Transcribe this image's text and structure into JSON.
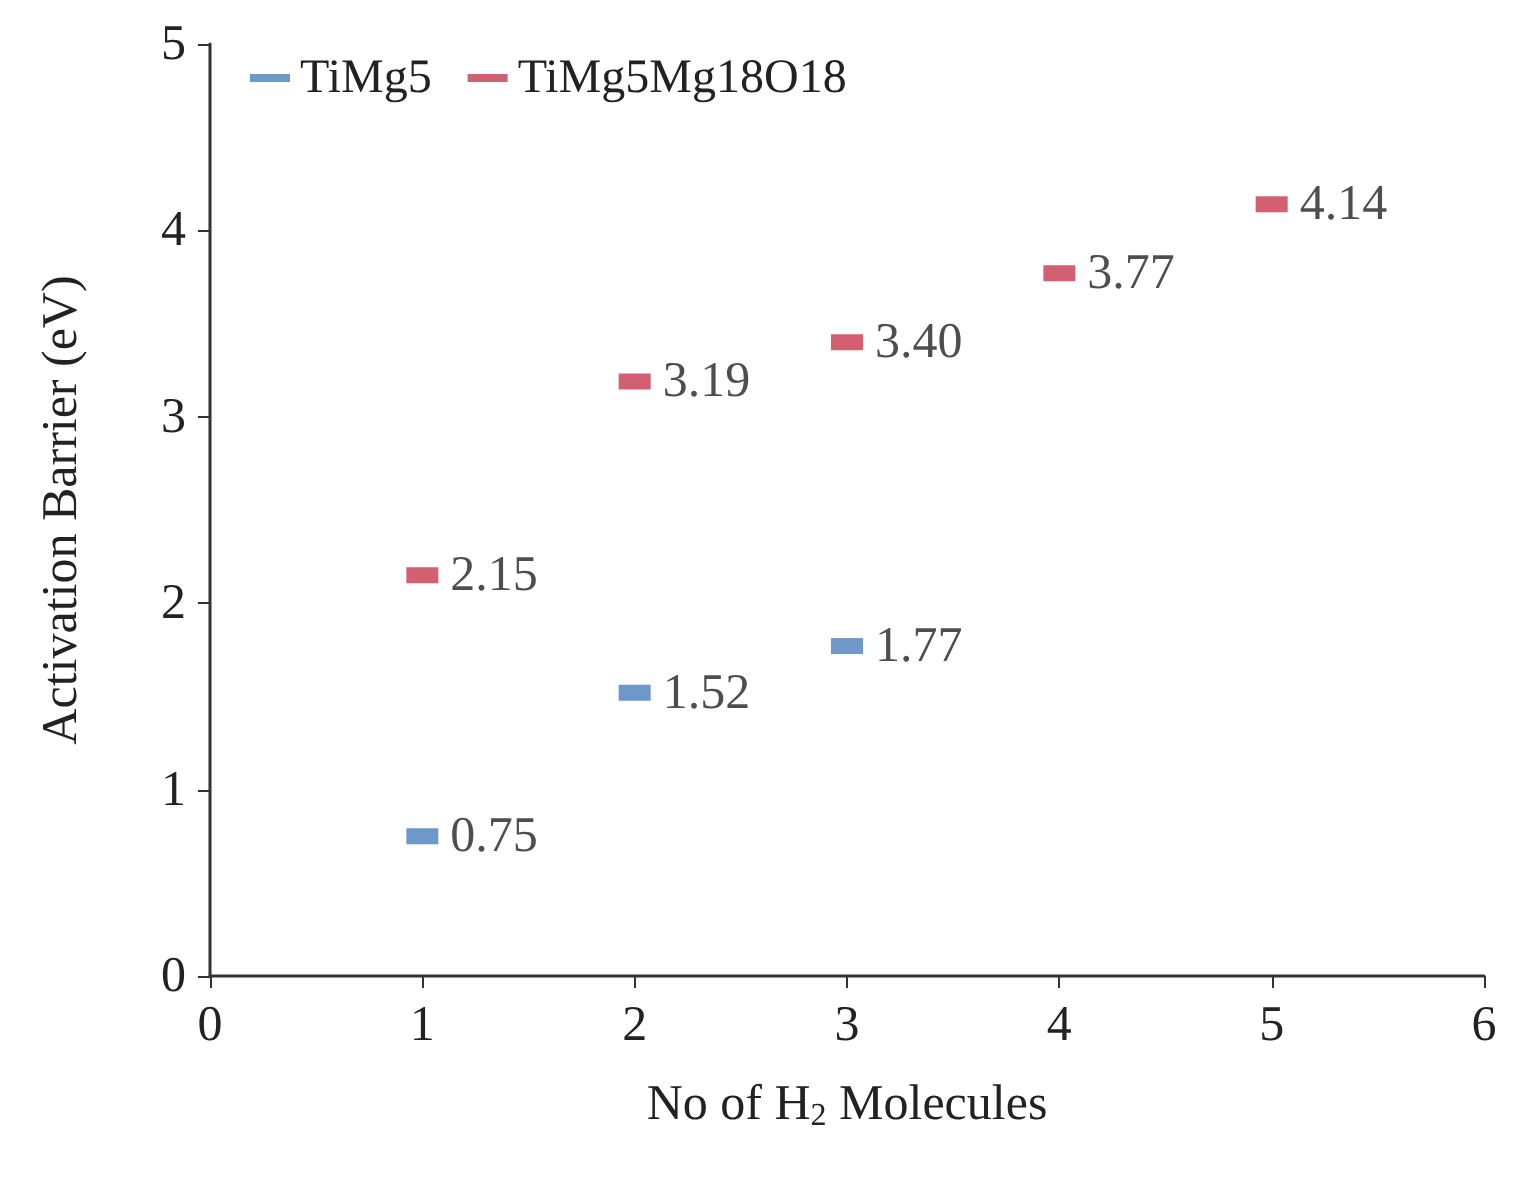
{
  "chart_data": {
    "type": "scatter",
    "xlabel": "No of H$_{2}$ Molecules",
    "ylabel": "Activation Barrier (eV)",
    "xlim": [
      0,
      6
    ],
    "xticks": [
      0,
      1,
      2,
      3,
      4,
      5,
      6
    ],
    "ylim": [
      0,
      5
    ],
    "yticks": [
      0,
      1,
      2,
      3,
      4,
      5
    ],
    "grid": false,
    "legend": "top left",
    "series": [
      {
        "name": "TiMg5",
        "color": "#4a7ebb",
        "x": [
          1,
          2,
          3
        ],
        "values": [
          0.75,
          1.52,
          1.77
        ],
        "value_labels": [
          "0.75",
          "1.52",
          "1.77"
        ]
      },
      {
        "name": "TiMg5Mg18O18",
        "color": "#c8384e",
        "x": [
          1,
          2,
          3,
          4,
          5
        ],
        "values": [
          2.15,
          3.19,
          3.4,
          3.77,
          4.14
        ],
        "value_labels": [
          "2.15",
          "3.19",
          "3.40",
          "3.77",
          "4.14"
        ]
      }
    ]
  }
}
